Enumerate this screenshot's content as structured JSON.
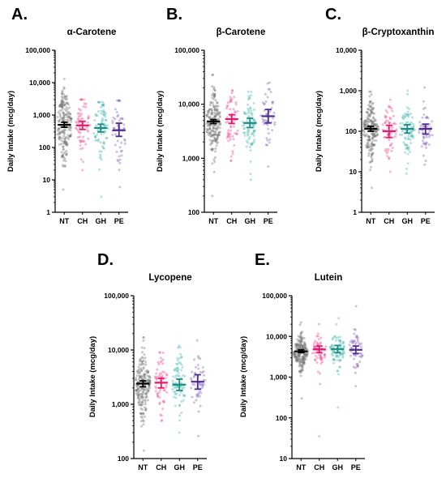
{
  "colors": {
    "NT": "#6e6e6e",
    "CH": "#ee3f86",
    "GH": "#3fb6ad",
    "PE": "#7d5bb4",
    "NT_mean": "#000000",
    "CH_mean": "#e6186e",
    "GH_mean": "#1a8c84",
    "PE_mean": "#4f2a91"
  },
  "chart_data": [
    {
      "panel": "A.",
      "type": "scatter",
      "scale": "log",
      "title": "α-Carotene",
      "ylabel": "Daily Intake (mcg/day)",
      "categories": [
        "NT",
        "CH",
        "GH",
        "PE"
      ],
      "ylim": [
        1,
        100000
      ],
      "ticks": [
        {
          "v": 1,
          "label": "1"
        },
        {
          "v": 10,
          "label": "10"
        },
        {
          "v": 100,
          "label": "100"
        },
        {
          "v": 1000,
          "label": "1,000"
        },
        {
          "v": 10000,
          "label": "10,000"
        },
        {
          "v": 100000,
          "label": "100,000"
        }
      ],
      "series": [
        {
          "name": "NT",
          "n": 200,
          "median": 480,
          "sigma": 0.55,
          "min": 5,
          "max": 13000,
          "mean": 500,
          "ci": [
            420,
            600
          ]
        },
        {
          "name": "CH",
          "n": 60,
          "median": 450,
          "sigma": 0.5,
          "min": 20,
          "max": 3000,
          "mean": 480,
          "ci": [
            360,
            640
          ]
        },
        {
          "name": "GH",
          "n": 80,
          "median": 380,
          "sigma": 0.5,
          "min": 3,
          "max": 2500,
          "mean": 400,
          "ci": [
            300,
            520
          ]
        },
        {
          "name": "PE",
          "n": 50,
          "median": 330,
          "sigma": 0.55,
          "min": 6,
          "max": 2800,
          "mean": 340,
          "ci": [
            220,
            560
          ]
        }
      ]
    },
    {
      "panel": "B.",
      "type": "scatter",
      "scale": "log",
      "title": "β-Carotene",
      "ylabel": "Daily Intake (mcg/day)",
      "categories": [
        "NT",
        "CH",
        "GH",
        "PE"
      ],
      "ylim": [
        100,
        100000
      ],
      "ticks": [
        {
          "v": 100,
          "label": "100"
        },
        {
          "v": 1000,
          "label": "1,000"
        },
        {
          "v": 10000,
          "label": "10,000"
        },
        {
          "v": 100000,
          "label": "100,000"
        }
      ],
      "series": [
        {
          "name": "NT",
          "n": 200,
          "median": 4600,
          "sigma": 0.3,
          "min": 200,
          "max": 35000,
          "mean": 4800,
          "ci": [
            4400,
            5200
          ]
        },
        {
          "name": "CH",
          "n": 60,
          "median": 5000,
          "sigma": 0.28,
          "min": 900,
          "max": 18000,
          "mean": 5300,
          "ci": [
            4400,
            6400
          ]
        },
        {
          "name": "GH",
          "n": 80,
          "median": 4300,
          "sigma": 0.3,
          "min": 400,
          "max": 17000,
          "mean": 4500,
          "ci": [
            3700,
            5500
          ]
        },
        {
          "name": "PE",
          "n": 50,
          "median": 5800,
          "sigma": 0.3,
          "min": 700,
          "max": 25000,
          "mean": 6000,
          "ci": [
            4500,
            8000
          ]
        }
      ]
    },
    {
      "panel": "C.",
      "type": "scatter",
      "scale": "log",
      "title": "β-Cryptoxanthin",
      "ylabel": "Daily Intake (mcg/day)",
      "categories": [
        "NT",
        "CH",
        "GH",
        "PE"
      ],
      "ylim": [
        1,
        10000
      ],
      "ticks": [
        {
          "v": 1,
          "label": "1"
        },
        {
          "v": 10,
          "label": "10"
        },
        {
          "v": 100,
          "label": "100"
        },
        {
          "v": 1000,
          "label": "1,000"
        },
        {
          "v": 10000,
          "label": "10,000"
        }
      ],
      "series": [
        {
          "name": "NT",
          "n": 200,
          "median": 110,
          "sigma": 0.35,
          "min": 4,
          "max": 950,
          "mean": 115,
          "ci": [
            100,
            132
          ]
        },
        {
          "name": "CH",
          "n": 60,
          "median": 95,
          "sigma": 0.35,
          "min": 10,
          "max": 600,
          "mean": 100,
          "ci": [
            70,
            140
          ]
        },
        {
          "name": "GH",
          "n": 80,
          "median": 110,
          "sigma": 0.33,
          "min": 9,
          "max": 1000,
          "mean": 115,
          "ci": [
            90,
            145
          ]
        },
        {
          "name": "PE",
          "n": 50,
          "median": 115,
          "sigma": 0.33,
          "min": 15,
          "max": 1200,
          "mean": 115,
          "ci": [
            85,
            150
          ]
        }
      ]
    },
    {
      "panel": "D.",
      "type": "scatter",
      "scale": "log",
      "title": "Lycopene",
      "ylabel": "Daily Intake (mcg/day)",
      "categories": [
        "NT",
        "CH",
        "GH",
        "PE"
      ],
      "ylim": [
        100,
        100000
      ],
      "ticks": [
        {
          "v": 100,
          "label": "100"
        },
        {
          "v": 1000,
          "label": "1,000"
        },
        {
          "v": 10000,
          "label": "10,000"
        },
        {
          "v": 100000,
          "label": "100,000"
        }
      ],
      "series": [
        {
          "name": "NT",
          "n": 200,
          "median": 2300,
          "sigma": 0.3,
          "min": 140,
          "max": 17000,
          "mean": 2400,
          "ci": [
            2100,
            2700
          ]
        },
        {
          "name": "CH",
          "n": 60,
          "median": 2400,
          "sigma": 0.28,
          "min": 500,
          "max": 9000,
          "mean": 2500,
          "ci": [
            2000,
            3000
          ]
        },
        {
          "name": "GH",
          "n": 80,
          "median": 2200,
          "sigma": 0.3,
          "min": 300,
          "max": 12000,
          "mean": 2300,
          "ci": [
            1800,
            2900
          ]
        },
        {
          "name": "PE",
          "n": 50,
          "median": 2500,
          "sigma": 0.3,
          "min": 260,
          "max": 15000,
          "mean": 2600,
          "ci": [
            1900,
            3500
          ]
        }
      ]
    },
    {
      "panel": "E.",
      "type": "scatter",
      "scale": "log",
      "title": "Lutein",
      "ylabel": "Daily Intake (mcg/day)",
      "categories": [
        "NT",
        "CH",
        "GH",
        "PE"
      ],
      "ylim": [
        10,
        100000
      ],
      "ticks": [
        {
          "v": 10,
          "label": "10"
        },
        {
          "v": 100,
          "label": "100"
        },
        {
          "v": 1000,
          "label": "1,000"
        },
        {
          "v": 10000,
          "label": "10,000"
        },
        {
          "v": 100000,
          "label": "100,000"
        }
      ],
      "series": [
        {
          "name": "NT",
          "n": 200,
          "median": 4200,
          "sigma": 0.22,
          "min": 300,
          "max": 22000,
          "mean": 4300,
          "ci": [
            4000,
            4700
          ]
        },
        {
          "name": "CH",
          "n": 60,
          "median": 4600,
          "sigma": 0.22,
          "min": 35,
          "max": 20000,
          "mean": 4800,
          "ci": [
            4000,
            5800
          ]
        },
        {
          "name": "GH",
          "n": 80,
          "median": 4700,
          "sigma": 0.25,
          "min": 180,
          "max": 28000,
          "mean": 4900,
          "ci": [
            4000,
            6000
          ]
        },
        {
          "name": "PE",
          "n": 50,
          "median": 4500,
          "sigma": 0.22,
          "min": 600,
          "max": 55000,
          "mean": 4700,
          "ci": [
            3800,
            5800
          ]
        }
      ]
    }
  ]
}
